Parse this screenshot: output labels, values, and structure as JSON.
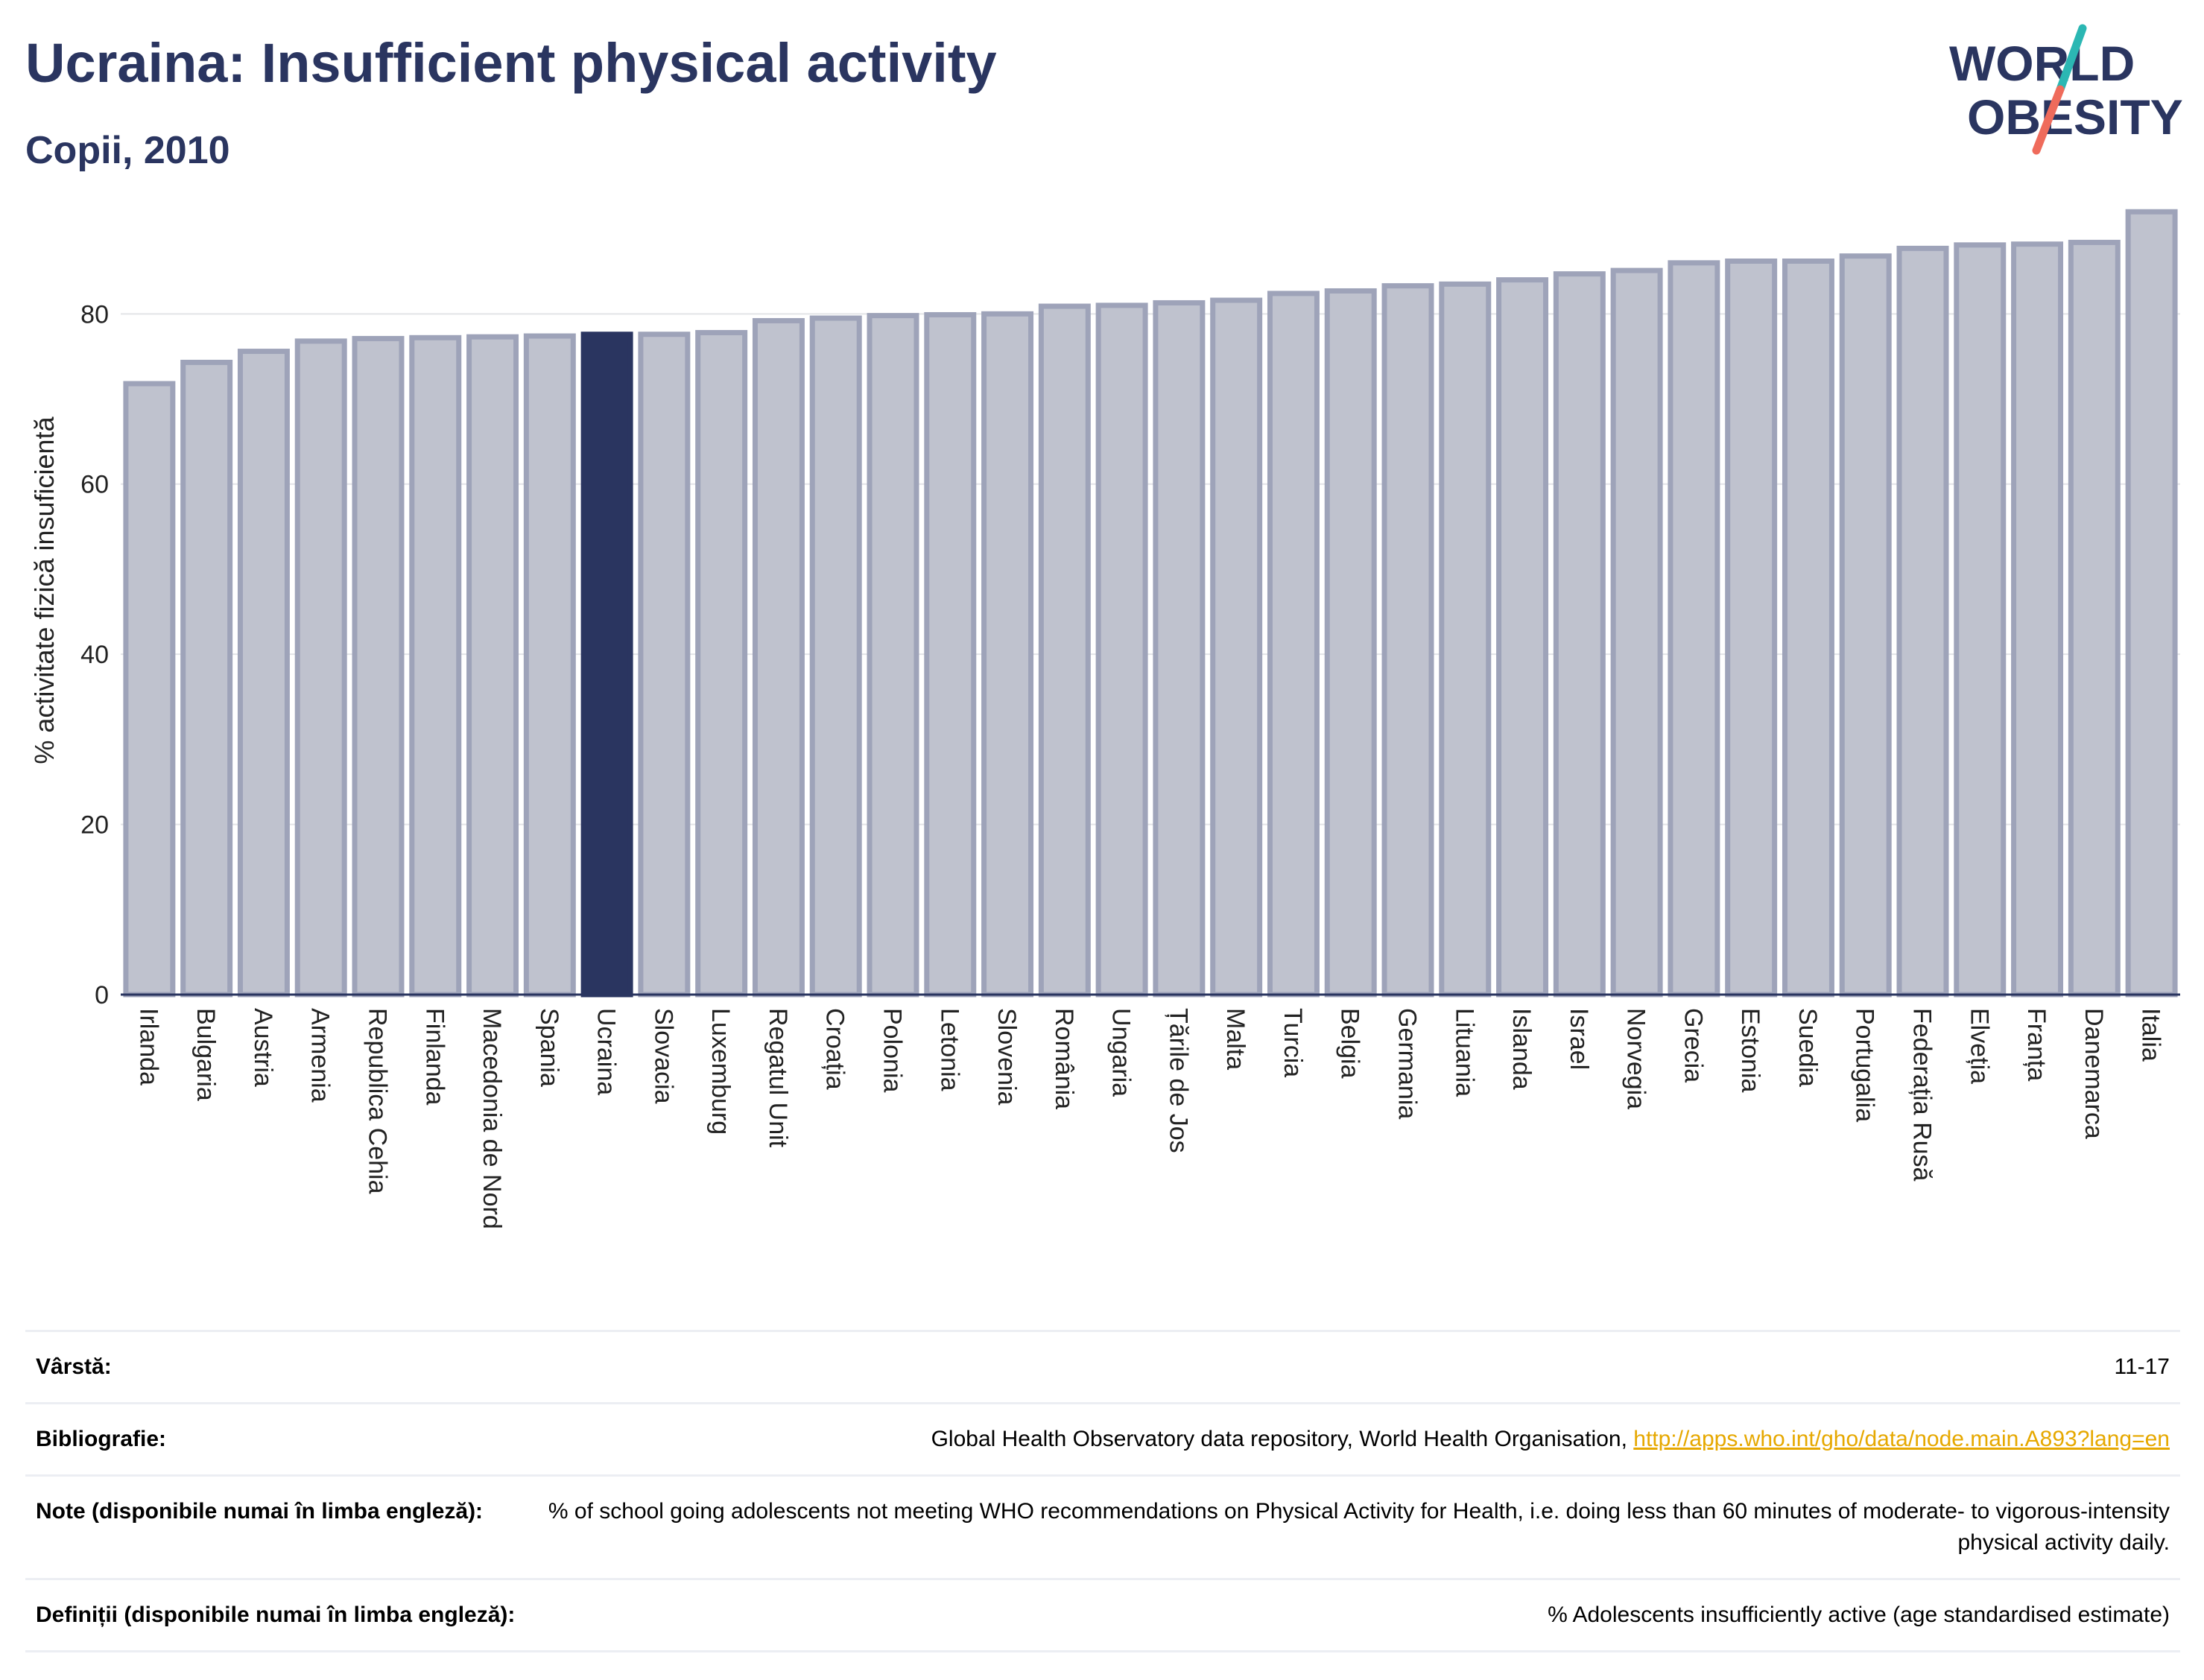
{
  "title": "Ucraina: Insufficient physical activity",
  "subtitle": "Copii, 2010",
  "logo": {
    "line1": "WORLD",
    "line2": "OBESITY",
    "colors": {
      "text": "#2a3560",
      "slash_top": "#2bb7b3",
      "slash_bottom": "#ef6b5b"
    }
  },
  "colors": {
    "bar": "#bfc2ce",
    "bar_border": "#9ea3b9",
    "highlight": "#2a3560",
    "grid": "#e3e4e8",
    "axis": "#2a3560"
  },
  "chart_data": {
    "type": "bar",
    "title": "Ucraina: Insufficient physical activity",
    "subtitle": "Copii, 2010",
    "xlabel": "",
    "ylabel": "% activitate fizică insuficientă",
    "ylim": [
      0,
      95
    ],
    "yticks": [
      0,
      20,
      40,
      60,
      80
    ],
    "grid": true,
    "highlight": "Ucraina",
    "categories": [
      "Irlanda",
      "Bulgaria",
      "Austria",
      "Armenia",
      "Republica Cehia",
      "Finlanda",
      "Macedonia de Nord",
      "Spania",
      "Ucraina",
      "Slovacia",
      "Luxemburg",
      "Regatul Unit",
      "Croația",
      "Polonia",
      "Letonia",
      "Slovenia",
      "România",
      "Ungaria",
      "Țările de Jos",
      "Malta",
      "Turcia",
      "Belgia",
      "Germania",
      "Lituania",
      "Islanda",
      "Israel",
      "Norvegia",
      "Grecia",
      "Estonia",
      "Suedia",
      "Portugalia",
      "Federația Rusă",
      "Elveția",
      "Franța",
      "Danemarca",
      "Italia"
    ],
    "values": [
      71.8,
      74.3,
      75.6,
      76.8,
      77.1,
      77.2,
      77.3,
      77.4,
      77.6,
      77.6,
      77.8,
      79.2,
      79.5,
      79.8,
      79.9,
      80.0,
      80.9,
      81.0,
      81.3,
      81.6,
      82.4,
      82.7,
      83.3,
      83.5,
      84.0,
      84.7,
      85.1,
      86.0,
      86.2,
      86.2,
      86.8,
      87.7,
      88.1,
      88.2,
      88.4,
      92.0
    ]
  },
  "meta": {
    "age": {
      "label": "Vârstă:",
      "value": "11-17"
    },
    "bibliography": {
      "label": "Bibliografie:",
      "value": "Global Health Observatory data repository, World Health Organisation,",
      "link": "http://apps.who.int/gho/data/node.main.A893?lang=en"
    },
    "notes": {
      "label": "Note (disponibile numai în limba engleză):",
      "value": "% of school going adolescents not meeting WHO recommendations on Physical Activity for Health, i.e. doing less than 60 minutes of moderate- to vigorous-intensity physical activity daily."
    },
    "definitions": {
      "label": "Definiții (disponibile numai în limba engleză):",
      "value": "% Adolescents insufficiently active (age standardised estimate)"
    }
  }
}
